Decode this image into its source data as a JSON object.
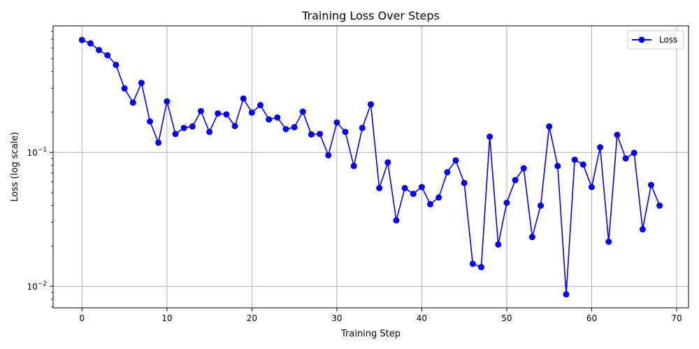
{
  "chart_data": {
    "type": "line",
    "title": "Training Loss Over Steps",
    "xlabel": "Training Step",
    "ylabel": "Loss (log scale)",
    "yscale": "log",
    "grid": true,
    "legend_placement": "top-right",
    "xlim": [
      -3.4,
      71.4
    ],
    "ylim": [
      0.0069,
      0.88
    ],
    "x_ticks": [
      0,
      10,
      20,
      30,
      40,
      50,
      60,
      70
    ],
    "x_tick_labels": [
      "0",
      "10",
      "20",
      "30",
      "40",
      "50",
      "60",
      "70"
    ],
    "y_ticks": [
      0.01,
      0.1
    ],
    "series": [
      {
        "name": "Loss",
        "color": "#0000ee",
        "marker": "circle",
        "x": [
          0,
          1,
          2,
          3,
          4,
          5,
          6,
          7,
          8,
          9,
          10,
          11,
          12,
          13,
          14,
          15,
          16,
          17,
          18,
          19,
          20,
          21,
          22,
          23,
          24,
          25,
          26,
          27,
          28,
          29,
          30,
          31,
          32,
          33,
          34,
          35,
          36,
          37,
          38,
          39,
          40,
          41,
          42,
          43,
          44,
          45,
          46,
          47,
          48,
          49,
          50,
          51,
          52,
          53,
          54,
          55,
          56,
          57,
          58,
          59,
          60,
          61,
          62,
          63,
          64,
          65,
          66,
          67,
          68
        ],
        "values": [
          0.69,
          0.65,
          0.58,
          0.53,
          0.45,
          0.3,
          0.235,
          0.33,
          0.17,
          0.118,
          0.24,
          0.137,
          0.152,
          0.156,
          0.203,
          0.142,
          0.195,
          0.192,
          0.157,
          0.252,
          0.198,
          0.225,
          0.176,
          0.182,
          0.149,
          0.154,
          0.201,
          0.136,
          0.137,
          0.095,
          0.167,
          0.142,
          0.079,
          0.152,
          0.228,
          0.054,
          0.084,
          0.031,
          0.054,
          0.049,
          0.055,
          0.041,
          0.046,
          0.071,
          0.087,
          0.059,
          0.0147,
          0.0139,
          0.131,
          0.0205,
          0.042,
          0.062,
          0.076,
          0.0233,
          0.04,
          0.156,
          0.079,
          0.0087,
          0.088,
          0.081,
          0.055,
          0.109,
          0.0215,
          0.135,
          0.09,
          0.099,
          0.0266,
          0.057,
          0.04
        ]
      }
    ]
  }
}
